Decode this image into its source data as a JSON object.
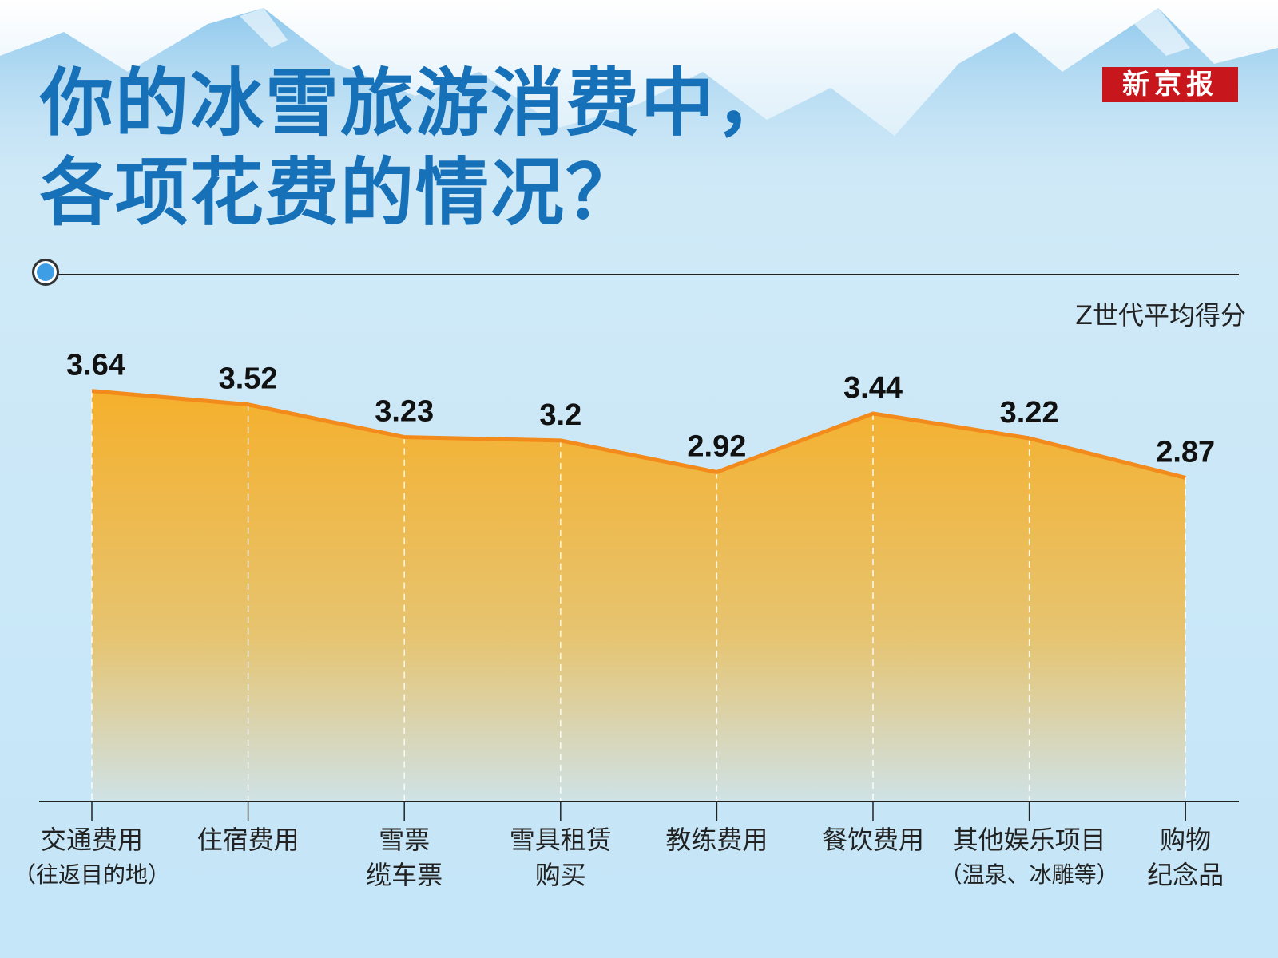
{
  "title_line1": "你的冰雪旅游消费中，",
  "title_line2": "各项花费的情况？",
  "logo": "新京报",
  "colors": {
    "title": "#1771b8",
    "fill_top": "#f5b02c",
    "line": "#f28a1c",
    "logo_bg": "#c8161d"
  },
  "chart_data": {
    "type": "area",
    "title": "你的冰雪旅游消费中，各项花费的情况？",
    "ylabel": "Z世代平均得分",
    "categories": [
      {
        "label": "交通费用",
        "sub": "（往返目的地）"
      },
      {
        "label": "住宿费用",
        "sub": ""
      },
      {
        "label": "雪票",
        "sub": "缆车票"
      },
      {
        "label": "雪具租赁",
        "sub": "购买"
      },
      {
        "label": "教练费用",
        "sub": ""
      },
      {
        "label": "餐饮费用",
        "sub": ""
      },
      {
        "label": "其他娱乐项目",
        "sub": "（温泉、冰雕等）"
      },
      {
        "label": "购物",
        "sub": "纪念品"
      }
    ],
    "values": [
      3.64,
      3.52,
      3.23,
      3.2,
      2.92,
      3.44,
      3.22,
      2.87
    ],
    "value_labels": [
      "3.64",
      "3.52",
      "3.23",
      "3.2",
      "2.92",
      "3.44",
      "3.22",
      "2.87"
    ],
    "ylim": [
      0,
      7.1
    ],
    "grid": false
  }
}
